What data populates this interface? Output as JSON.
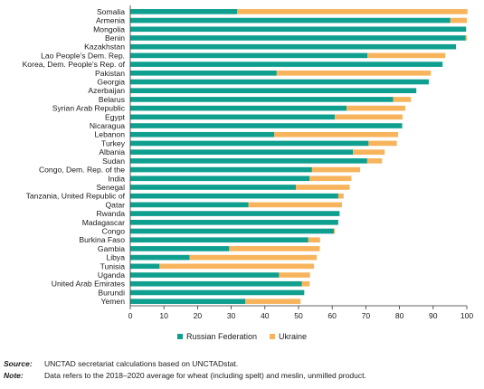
{
  "colors": {
    "russia": "#0f9f8f",
    "ukraine": "#f7b45c"
  },
  "chart_data": {
    "type": "bar",
    "orientation": "horizontal",
    "stacked": true,
    "categories": [
      "Somalia",
      "Armenia",
      "Mongolia",
      "Benin",
      "Kazakhstan",
      "Lao People's Dem. Rep.",
      "Korea, Dem. People's Rep. of",
      "Pakistan",
      "Georgia",
      "Azerbaijan",
      "Belarus",
      "Syrian Arab Republic",
      "Egypt",
      "Nicaragua",
      "Lebanon",
      "Turkey",
      "Albania",
      "Sudan",
      "Congo, Dem. Rep. of the",
      "India",
      "Senegal",
      "Tanzania, United Republic of",
      "Qatar",
      "Rwanda",
      "Madagascar",
      "Congo",
      "Burkina Faso",
      "Gambia",
      "Libya",
      "Tunisia",
      "Uganda",
      "United Arab Emirates",
      "Burundi",
      "Yemen"
    ],
    "series": [
      {
        "name": "Russian Federation",
        "values": [
          31.8,
          95.1,
          99.8,
          99.6,
          96.8,
          70.5,
          92.8,
          43.5,
          88.7,
          85.0,
          78.1,
          64.3,
          60.8,
          80.8,
          42.8,
          70.8,
          66.2,
          70.4,
          54.0,
          53.3,
          49.2,
          61.8,
          35.1,
          62.2,
          61.8,
          60.5,
          52.9,
          29.4,
          17.6,
          8.7,
          44.2,
          51.0,
          51.7,
          34.2
        ]
      },
      {
        "name": "Ukraine",
        "values": [
          68.4,
          4.9,
          0.0,
          0.4,
          0.0,
          23.1,
          0.0,
          45.8,
          0.0,
          0.0,
          5.3,
          17.4,
          20.1,
          0.0,
          36.8,
          8.4,
          9.4,
          4.4,
          14.3,
          12.4,
          16.0,
          1.6,
          27.8,
          0.0,
          0.0,
          0.3,
          3.5,
          26.9,
          37.8,
          45.9,
          9.2,
          2.3,
          0.0,
          16.4
        ]
      }
    ],
    "xlim": [
      0,
      100
    ],
    "xticks": [
      "0",
      "10",
      "20",
      "30",
      "40",
      "50",
      "60",
      "70",
      "80",
      "90",
      "100"
    ],
    "legend_placement": "bottom-center",
    "grid": false
  },
  "legend": {
    "russia": "Russian Federation",
    "ukraine": "Ukraine"
  },
  "footnotes": {
    "source_key": "Source:",
    "source_text": "UNCTAD secretariat calculations based on UNCTADstat.",
    "note_key": "Note:",
    "note_text": "Data refers to the 2018–2020 average for wheat (including spelt) and meslin, unmilled product."
  }
}
